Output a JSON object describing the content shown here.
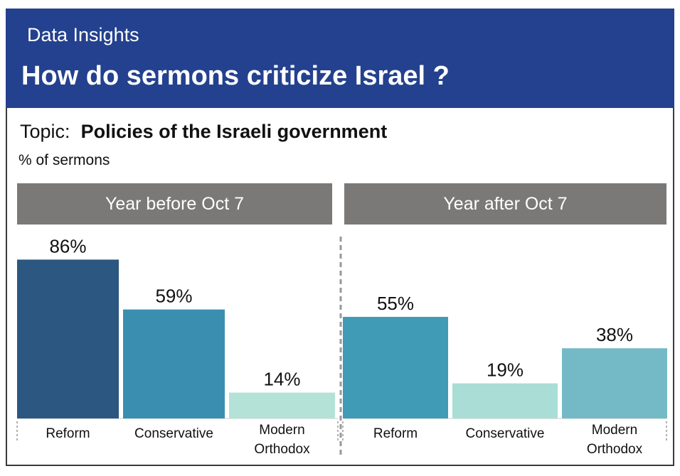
{
  "header": {
    "kicker": "Data Insights",
    "title": "How do sermons criticize Israel ?"
  },
  "topic": {
    "prefix": "Topic:",
    "name": "Policies of the Israeli government"
  },
  "unit_label": "% of sermons",
  "chart_data": [
    {
      "type": "bar",
      "panel_title": "Year before Oct 7",
      "categories": [
        "Reform",
        "Conservative",
        "Modern Orthodox"
      ],
      "values": [
        86,
        59,
        14
      ],
      "value_labels": [
        "86%",
        "59%",
        "14%"
      ],
      "colors": [
        "#2b5780",
        "#3a8fb0",
        "#b5e2d6"
      ],
      "ylim": [
        0,
        100
      ]
    },
    {
      "type": "bar",
      "panel_title": "Year after Oct 7",
      "categories": [
        "Reform",
        "Conservative",
        "Modern Orthodox"
      ],
      "values": [
        55,
        19,
        38
      ],
      "value_labels": [
        "55%",
        "19%",
        "38%"
      ],
      "colors": [
        "#409bb6",
        "#a9ddd5",
        "#74b9c6"
      ],
      "ylim": [
        0,
        100
      ]
    }
  ]
}
